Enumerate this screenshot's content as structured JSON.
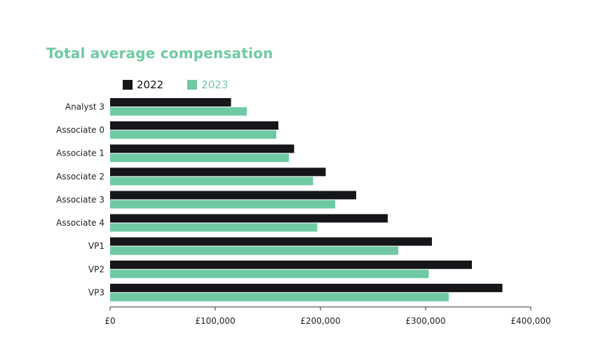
{
  "chart_data": {
    "type": "bar",
    "orientation": "horizontal",
    "title": "Total average compensation",
    "categories": [
      "Analyst 3",
      "Associate 0",
      "Associate 1",
      "Associate 2",
      "Associate 3",
      "Associate 4",
      "VP1",
      "VP2",
      "VP3"
    ],
    "series": [
      {
        "name": "2022",
        "color": "#141619",
        "values": [
          115000,
          160000,
          175000,
          205000,
          234000,
          264000,
          306000,
          344000,
          373000
        ]
      },
      {
        "name": "2023",
        "color": "#6fcaa3",
        "values": [
          130000,
          158000,
          170000,
          193000,
          214000,
          197000,
          274000,
          303000,
          322000
        ]
      }
    ],
    "xlim": [
      0,
      400000
    ],
    "xticks": [
      0,
      100000,
      200000,
      300000,
      400000
    ],
    "xtick_labels": [
      "£0",
      "£100,000",
      "£200,000",
      "£300,000",
      "£400,000"
    ],
    "grid": false,
    "legend_position": "top-left"
  }
}
